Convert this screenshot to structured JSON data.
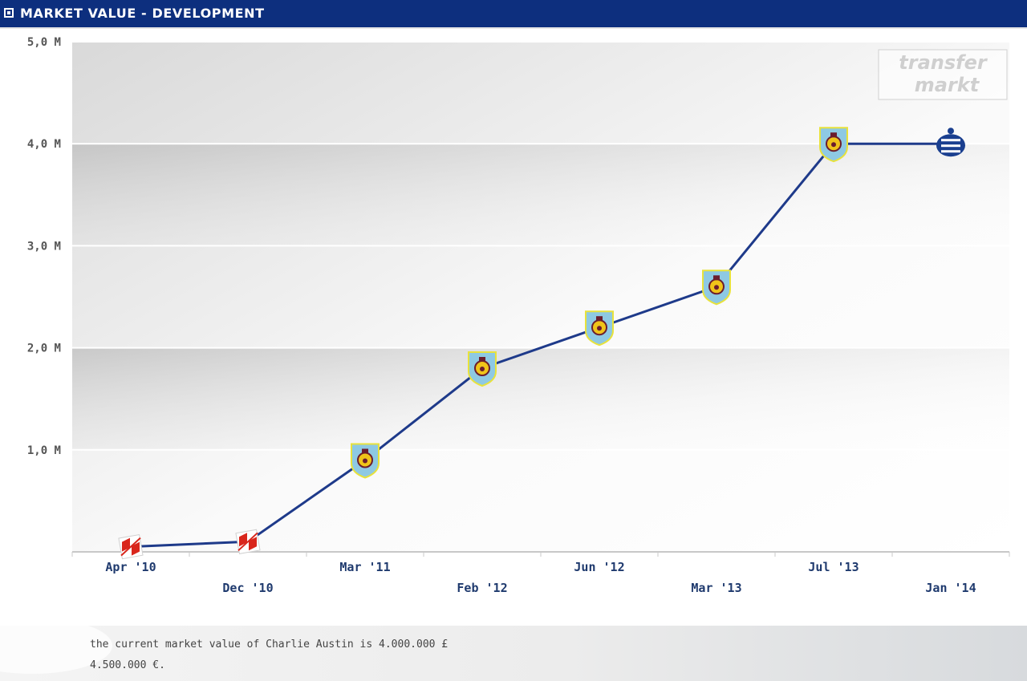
{
  "header": {
    "title": "MARKET VALUE - DEVELOPMENT"
  },
  "watermark": {
    "line1": "transfer",
    "line2": "markt"
  },
  "footer": {
    "line1": "the current market value of Charlie Austin is 4.000.000 £",
    "line2": "4.500.000 €."
  },
  "chart_data": {
    "type": "line",
    "x": [
      "Apr '10",
      "Dec '10",
      "Mar '11",
      "Feb '12",
      "Jun '12",
      "Mar '13",
      "Jul '13",
      "Jan '14"
    ],
    "values": [
      0.05,
      0.1,
      0.9,
      1.8,
      2.2,
      2.6,
      4.0,
      4.0
    ],
    "ylim": [
      0,
      5
    ],
    "ytick_values": [
      1,
      2,
      3,
      4,
      5
    ],
    "ytick_labels": [
      "1,0 M",
      "2,0 M",
      "3,0 M",
      "4,0 M",
      "5,0 M"
    ],
    "grid": true,
    "line_color": "#1e3a8a",
    "markers": [
      "red-club-crest-icon",
      "red-club-crest-icon",
      "burnley-crest-icon",
      "burnley-crest-icon",
      "burnley-crest-icon",
      "burnley-crest-icon",
      "burnley-crest-icon",
      "qpr-crest-icon"
    ]
  }
}
